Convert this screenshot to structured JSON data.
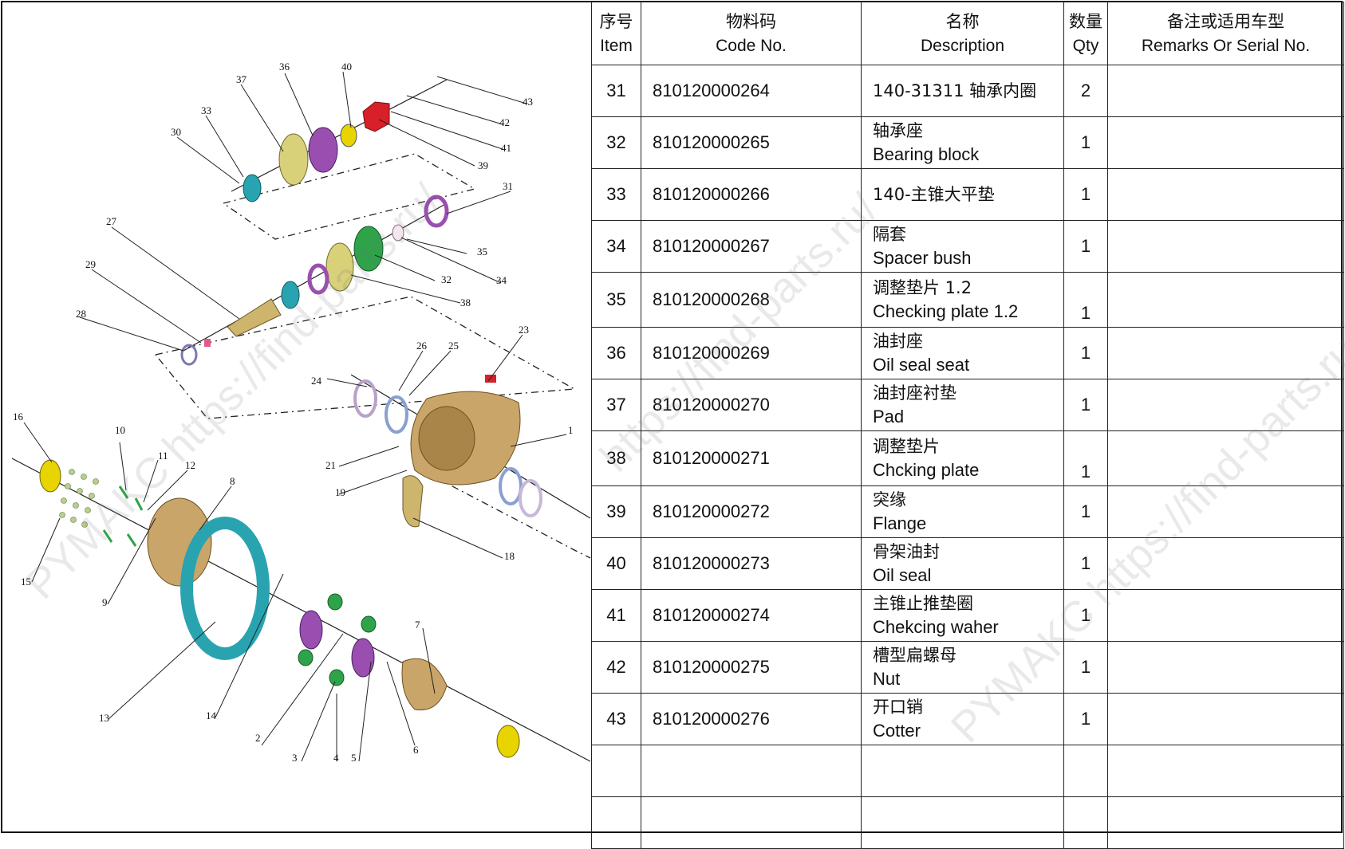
{
  "table": {
    "headers": {
      "item_zh": "序号",
      "item_en": "Item",
      "code_zh": "物料码",
      "code_en": "Code No.",
      "desc_zh": "名称",
      "desc_en": "Description",
      "qty_zh": "数量",
      "qty_en": "Qty",
      "remarks_zh": "备注或适用车型",
      "remarks_en": "Remarks Or Serial No."
    },
    "rows": [
      {
        "item": "31",
        "code": "810120000264",
        "desc_zh": "140-31311 轴承内圈",
        "desc_en": "",
        "qty": "2",
        "remarks": ""
      },
      {
        "item": "32",
        "code": "810120000265",
        "desc_zh": "轴承座",
        "desc_en": "Bearing block",
        "qty": "1",
        "remarks": ""
      },
      {
        "item": "33",
        "code": "810120000266",
        "desc_zh": "140-主锥大平垫",
        "desc_en": "",
        "qty": "1",
        "remarks": ""
      },
      {
        "item": "34",
        "code": "810120000267",
        "desc_zh": "隔套",
        "desc_en": "Spacer bush",
        "qty": "1",
        "remarks": ""
      },
      {
        "item": "35",
        "code": "810120000268",
        "desc_zh": "调整垫片 1.2",
        "desc_en": "Checking plate 1.2",
        "qty": "1",
        "remarks": ""
      },
      {
        "item": "36",
        "code": "810120000269",
        "desc_zh": "油封座",
        "desc_en": "Oil seal seat",
        "qty": "1",
        "remarks": ""
      },
      {
        "item": "37",
        "code": "810120000270",
        "desc_zh": "油封座衬垫",
        "desc_en": "Pad",
        "qty": "1",
        "remarks": ""
      },
      {
        "item": "38",
        "code": "810120000271",
        "desc_zh": "调整垫片",
        "desc_en": "Chcking plate",
        "qty": "1",
        "remarks": ""
      },
      {
        "item": "39",
        "code": "810120000272",
        "desc_zh": "突缘",
        "desc_en": "Flange",
        "qty": "1",
        "remarks": ""
      },
      {
        "item": "40",
        "code": "810120000273",
        "desc_zh": "骨架油封",
        "desc_en": "Oil seal",
        "qty": "1",
        "remarks": ""
      },
      {
        "item": "41",
        "code": "810120000274",
        "desc_zh": "主锥止推垫圈",
        "desc_en": "Chekcing waher",
        "qty": "1",
        "remarks": ""
      },
      {
        "item": "42",
        "code": "810120000275",
        "desc_zh": "槽型扁螺母",
        "desc_en": "Nut",
        "qty": "1",
        "remarks": ""
      },
      {
        "item": "43",
        "code": "810120000276",
        "desc_zh": "开口销",
        "desc_en": "Cotter",
        "qty": "1",
        "remarks": ""
      },
      {
        "item": "",
        "code": "",
        "desc_zh": "",
        "desc_en": "",
        "qty": "",
        "remarks": ""
      },
      {
        "item": "",
        "code": "",
        "desc_zh": "",
        "desc_en": "",
        "qty": "",
        "remarks": ""
      }
    ]
  },
  "diagram": {
    "callouts": [
      "43",
      "42",
      "41",
      "40",
      "39",
      "36",
      "37",
      "33",
      "30",
      "31",
      "35",
      "34",
      "32",
      "38",
      "27",
      "29",
      "28",
      "23",
      "26",
      "25",
      "24",
      "1",
      "16",
      "10",
      "11",
      "12",
      "8",
      "21",
      "19",
      "18",
      "15",
      "9",
      "13",
      "14",
      "2",
      "3",
      "4",
      "5",
      "6",
      "7"
    ]
  },
  "watermarks": [
    "PYMAKC https://find-parts.ru/",
    "https://find-parts.ru/",
    "PYMAKC https://find-parts.ru/"
  ],
  "colors": {
    "gear_teal": "#2aa3b0",
    "gold": "#c9a56a",
    "purple": "#9a4fb0",
    "green": "#2ea34a",
    "yellow": "#e8d400",
    "red": "#d8202a"
  }
}
